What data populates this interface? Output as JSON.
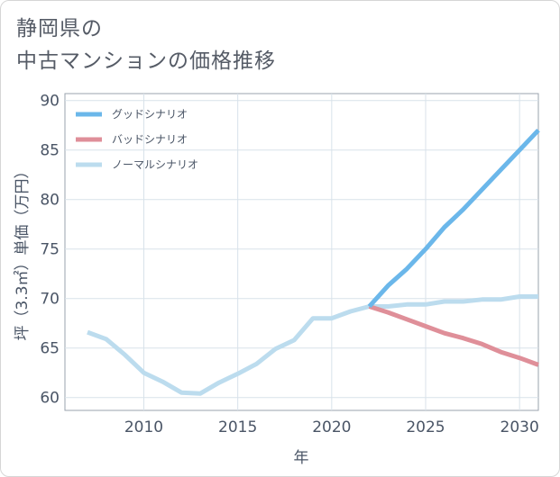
{
  "title": {
    "line1": "静岡県の",
    "line2": "中古マンションの価格推移"
  },
  "chart_data": {
    "type": "line",
    "xlabel": "年",
    "ylabel": "坪（3.3㎡）単価（万円）",
    "xlim": [
      2005.8,
      2031
    ],
    "ylim": [
      58.7,
      90.7
    ],
    "x_ticks": [
      2010,
      2015,
      2020,
      2025,
      2030
    ],
    "y_ticks": [
      60,
      65,
      70,
      75,
      80,
      85,
      90
    ],
    "grid": true,
    "legend_position": "top-left",
    "series": [
      {
        "name": "グッドシナリオ",
        "color": "#6bb7ea",
        "x": [
          2022,
          2023,
          2024,
          2025,
          2026,
          2027,
          2028,
          2029,
          2030,
          2031
        ],
        "y": [
          69.2,
          71.3,
          73.0,
          75.0,
          77.2,
          79.0,
          81.0,
          83.0,
          85.0,
          87.0
        ]
      },
      {
        "name": "バッドシナリオ",
        "color": "#df8f99",
        "x": [
          2022,
          2023,
          2024,
          2025,
          2026,
          2027,
          2028,
          2029,
          2030,
          2031
        ],
        "y": [
          69.2,
          68.6,
          67.9,
          67.2,
          66.5,
          66.0,
          65.4,
          64.6,
          64.0,
          63.3
        ]
      },
      {
        "name": "ノーマルシナリオ",
        "color": "#bcdcee",
        "x": [
          2007,
          2008,
          2009,
          2010,
          2011,
          2012,
          2013,
          2014,
          2015,
          2016,
          2017,
          2018,
          2019,
          2020,
          2021,
          2022,
          2023,
          2024,
          2025,
          2026,
          2027,
          2028,
          2029,
          2030,
          2031
        ],
        "y": [
          66.6,
          65.9,
          64.3,
          62.5,
          61.6,
          60.5,
          60.4,
          61.5,
          62.4,
          63.4,
          64.9,
          65.8,
          68.0,
          68.0,
          68.7,
          69.2,
          69.2,
          69.4,
          69.4,
          69.7,
          69.7,
          69.9,
          69.9,
          70.2,
          70.2
        ]
      }
    ]
  }
}
